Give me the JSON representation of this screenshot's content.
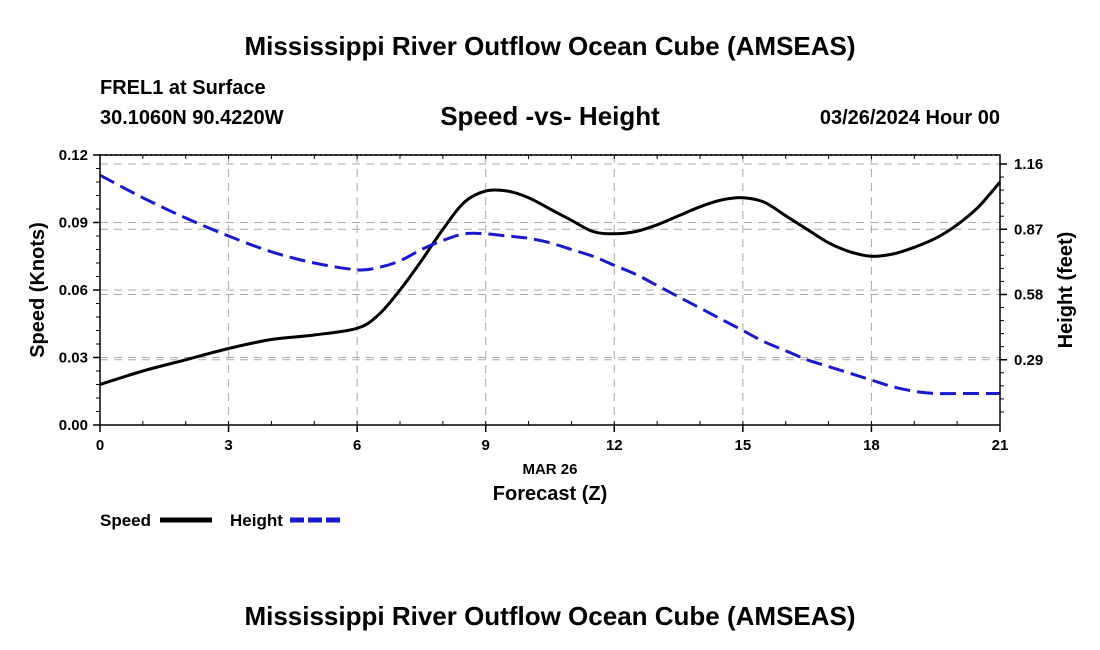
{
  "header": {
    "title": "Mississippi River Outflow Ocean Cube (AMSEAS)",
    "station": "FREL1 at Surface",
    "coords": "30.1060N  90.4220W",
    "date": "03/26/2024 Hour 00",
    "footer_title": "Mississippi River Outflow Ocean Cube (AMSEAS)"
  },
  "chart_data": {
    "type": "line",
    "title": "Speed -vs- Height",
    "xlabel": "Forecast (Z)",
    "date_label": "MAR 26",
    "ylabel": "Speed (Knots)",
    "y2label": "Height (feet)",
    "xlim": [
      0,
      21
    ],
    "ylim": [
      0,
      0.12
    ],
    "y2lim": [
      0,
      1.2
    ],
    "x_ticks": [
      "0",
      "3",
      "6",
      "9",
      "12",
      "15",
      "18",
      "21"
    ],
    "y_ticks": [
      "0.00",
      "0.03",
      "0.06",
      "0.09",
      "0.12"
    ],
    "y2_ticks": [
      "0.29",
      "0.58",
      "0.87",
      "1.16"
    ],
    "y2_tick_values": [
      0.29,
      0.58,
      0.87,
      1.16
    ],
    "grid": true,
    "legend_position": "bottom-left",
    "series": [
      {
        "name": "Speed",
        "axis": "left",
        "color": "#000000",
        "dashed": false,
        "x": [
          0,
          1,
          2,
          3,
          4,
          5,
          6,
          6.5,
          7,
          7.5,
          8,
          8.5,
          9,
          9.5,
          10,
          10.5,
          11,
          11.5,
          12,
          12.5,
          13,
          13.5,
          14,
          14.5,
          15,
          15.5,
          16,
          16.5,
          17,
          17.5,
          18,
          18.5,
          19,
          19.5,
          20,
          20.5,
          21
        ],
        "values": [
          0.018,
          0.024,
          0.029,
          0.034,
          0.038,
          0.04,
          0.043,
          0.049,
          0.06,
          0.073,
          0.087,
          0.099,
          0.104,
          0.104,
          0.101,
          0.096,
          0.091,
          0.086,
          0.085,
          0.086,
          0.089,
          0.093,
          0.097,
          0.1,
          0.101,
          0.099,
          0.093,
          0.087,
          0.081,
          0.077,
          0.075,
          0.076,
          0.079,
          0.083,
          0.089,
          0.097,
          0.108
        ]
      },
      {
        "name": "Height",
        "axis": "right",
        "color": "#1a1acc",
        "dashed": true,
        "x": [
          0,
          1,
          2,
          3,
          4,
          5,
          6,
          6.5,
          7,
          7.5,
          8,
          8.5,
          9,
          9.5,
          10,
          10.5,
          11,
          11.5,
          12,
          12.5,
          13,
          13.5,
          14,
          14.5,
          15,
          15.5,
          16,
          16.5,
          17,
          17.5,
          18,
          18.5,
          19,
          19.5,
          20,
          20.5,
          21
        ],
        "values": [
          1.11,
          1.01,
          0.92,
          0.84,
          0.77,
          0.72,
          0.69,
          0.7,
          0.73,
          0.78,
          0.82,
          0.85,
          0.85,
          0.84,
          0.83,
          0.81,
          0.78,
          0.75,
          0.71,
          0.67,
          0.62,
          0.57,
          0.52,
          0.47,
          0.42,
          0.37,
          0.33,
          0.29,
          0.26,
          0.23,
          0.2,
          0.17,
          0.15,
          0.14,
          0.14,
          0.14,
          0.14
        ]
      }
    ]
  }
}
